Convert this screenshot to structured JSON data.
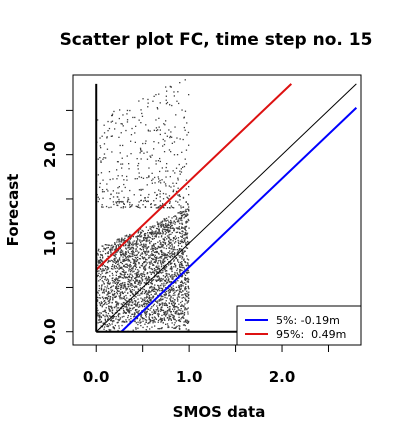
{
  "chart_data": {
    "type": "scatter",
    "title": "Scatter plot FC, time step no. 15",
    "xlabel": "SMOS data",
    "ylabel": "Forecast",
    "xlim": [
      -0.25,
      2.85
    ],
    "ylim": [
      -0.15,
      2.9
    ],
    "x_ticks": [
      0.0,
      0.5,
      1.0,
      1.5,
      2.0,
      2.5
    ],
    "x_tick_labels": [
      "0.0",
      "",
      "1.0",
      "",
      "2.0",
      ""
    ],
    "y_ticks": [
      0.0,
      0.5,
      1.0,
      1.5,
      2.0,
      2.5
    ],
    "y_tick_labels": [
      "0.0",
      "",
      "1.0",
      "",
      "2.0",
      ""
    ],
    "grid": false,
    "legend_position": "bottom-right",
    "point_color": "#3c3c3c",
    "point_cloud": {
      "x_range": [
        0.0,
        1.0
      ],
      "y_range": [
        0.0,
        2.9
      ],
      "dense_y_range": [
        0.1,
        1.4
      ],
      "approx_points": 3000
    },
    "reference_lines": [
      {
        "id": "identity",
        "slope": 1.0,
        "intercept": 0.0,
        "x_range": [
          0.0,
          2.8
        ],
        "color": "#000000"
      },
      {
        "id": "p5",
        "label": "5%: -0.19m",
        "slope": 1.0,
        "intercept": -0.27,
        "x_range": [
          0.27,
          2.8
        ],
        "color": "#0000ff"
      },
      {
        "id": "p95",
        "label": "95%:  0.49m",
        "slope": 1.0,
        "intercept": 0.7,
        "x_range": [
          0.0,
          2.1
        ],
        "color": "#dd1111"
      }
    ],
    "axis_lines": [
      {
        "id": "vertical",
        "from": [
          0.0,
          0.0
        ],
        "to": [
          0.0,
          2.8
        ]
      },
      {
        "id": "horizontal",
        "from": [
          0.0,
          0.0
        ],
        "to": [
          2.8,
          0.0
        ]
      }
    ],
    "legend": [
      {
        "label": "5%: -0.19m",
        "color": "#0000ff"
      },
      {
        "label": "95%:  0.49m",
        "color": "#dd1111"
      }
    ]
  }
}
